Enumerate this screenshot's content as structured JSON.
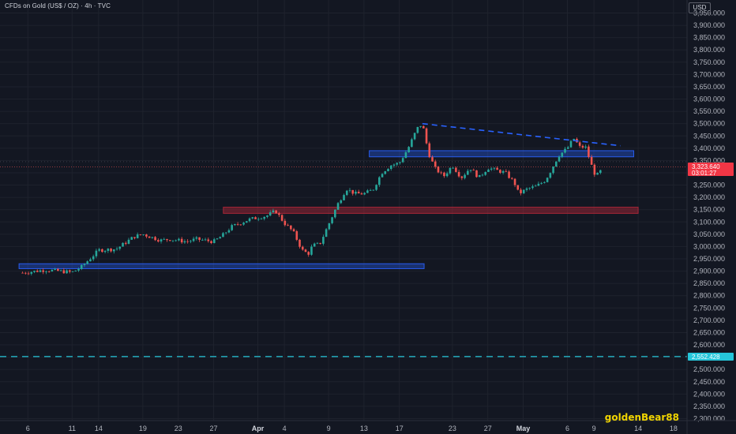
{
  "header": {
    "title": "CFDs on Gold (US$ / OZ) · 4h · TVC",
    "currency": "USD"
  },
  "watermark": "goldenBear88",
  "price_tags": {
    "current_price": "3,323.640",
    "countdown": "03:01:27",
    "current_color": "#f23645",
    "support_price": "2,552.428",
    "support_color": "#26c6da"
  },
  "colors": {
    "background": "#131722",
    "up_candle": "#26a69a",
    "down_candle": "#ef5350",
    "demand_zone": "#2962ff",
    "supply_zone": "#b2283a",
    "trendline": "#2962ff",
    "support_line": "#26c6da"
  },
  "chart_data": {
    "type": "candlestick",
    "title": "CFDs on Gold (US$ / OZ) · 4h · TVC",
    "ylabel": "USD",
    "ylim": [
      2280,
      3980
    ],
    "y_ticks": [
      2300,
      2350,
      2400,
      2450,
      2500,
      2550,
      2600,
      2650,
      2700,
      2750,
      2800,
      2850,
      2900,
      2950,
      3000,
      3050,
      3100,
      3150,
      3200,
      3250,
      3300,
      3350,
      3400,
      3450,
      3500,
      3550,
      3600,
      3650,
      3700,
      3750,
      3800,
      3850,
      3900,
      3950
    ],
    "x_ticks": [
      {
        "label": "6",
        "day": 0
      },
      {
        "label": "11",
        "day": 5
      },
      {
        "label": "14",
        "day": 8
      },
      {
        "label": "19",
        "day": 13
      },
      {
        "label": "23",
        "day": 17
      },
      {
        "label": "27",
        "day": 21
      },
      {
        "label": "Apr",
        "day": 26,
        "bold": true
      },
      {
        "label": "4",
        "day": 29
      },
      {
        "label": "9",
        "day": 34
      },
      {
        "label": "13",
        "day": 38
      },
      {
        "label": "17",
        "day": 42
      },
      {
        "label": "23",
        "day": 48
      },
      {
        "label": "27",
        "day": 52
      },
      {
        "label": "May",
        "day": 56,
        "bold": true
      },
      {
        "label": "6",
        "day": 61
      },
      {
        "label": "9",
        "day": 64
      },
      {
        "label": "14",
        "day": 69
      },
      {
        "label": "18",
        "day": 73
      }
    ],
    "x_unit": "calendar day offset from March 6",
    "price_path": [
      [
        -0.6,
        2893
      ],
      [
        2,
        2905
      ],
      [
        5,
        2895
      ],
      [
        6,
        2915
      ],
      [
        8,
        2985
      ],
      [
        10,
        2990
      ],
      [
        12,
        3040
      ],
      [
        13,
        3050
      ],
      [
        15,
        3025
      ],
      [
        16,
        3030
      ],
      [
        18,
        3020
      ],
      [
        19,
        3030
      ],
      [
        21,
        3020
      ],
      [
        22,
        3045
      ],
      [
        23,
        3080
      ],
      [
        25,
        3110
      ],
      [
        27,
        3125
      ],
      [
        28,
        3145
      ],
      [
        29,
        3095
      ],
      [
        30,
        3060
      ],
      [
        31,
        2985
      ],
      [
        31.7,
        2970
      ],
      [
        32.2,
        3005
      ],
      [
        33,
        3010
      ],
      [
        34,
        3090
      ],
      [
        35,
        3170
      ],
      [
        36,
        3235
      ],
      [
        37,
        3215
      ],
      [
        38,
        3215
      ],
      [
        39,
        3230
      ],
      [
        40,
        3300
      ],
      [
        41,
        3330
      ],
      [
        42,
        3340
      ],
      [
        43,
        3400
      ],
      [
        44,
        3480
      ],
      [
        44.6,
        3500
      ],
      [
        45.3,
        3380
      ],
      [
        46,
        3320
      ],
      [
        47,
        3285
      ],
      [
        48,
        3330
      ],
      [
        49,
        3280
      ],
      [
        50,
        3320
      ],
      [
        51,
        3280
      ],
      [
        52,
        3320
      ],
      [
        53,
        3310
      ],
      [
        54,
        3300
      ],
      [
        55,
        3260
      ],
      [
        55.5,
        3215
      ],
      [
        56.5,
        3235
      ],
      [
        57.5,
        3245
      ],
      [
        58.5,
        3270
      ],
      [
        59,
        3300
      ],
      [
        60,
        3370
      ],
      [
        61,
        3400
      ],
      [
        61.7,
        3440
      ],
      [
        62.5,
        3400
      ],
      [
        63,
        3410
      ],
      [
        64,
        3300
      ],
      [
        64.5,
        3290
      ],
      [
        65,
        3324
      ]
    ],
    "zones": [
      {
        "name": "demand-zone-upper",
        "kind": "demand",
        "day_from": 38.6,
        "day_to": 68.5,
        "price_low": 3365,
        "price_high": 3390
      },
      {
        "name": "supply-zone",
        "kind": "supply",
        "day_from": 22.1,
        "day_to": 69.0,
        "price_low": 3135,
        "price_high": 3160
      },
      {
        "name": "demand-zone-lower",
        "kind": "demand",
        "day_from": -1.0,
        "day_to": 44.8,
        "price_low": 2910,
        "price_high": 2930
      }
    ],
    "trendline": {
      "from": {
        "day": 44.6,
        "price": 3500
      },
      "to": {
        "day": 67.0,
        "price": 3410
      }
    },
    "horizontal_lines": [
      {
        "name": "support-line",
        "price": 2552.428
      }
    ]
  }
}
